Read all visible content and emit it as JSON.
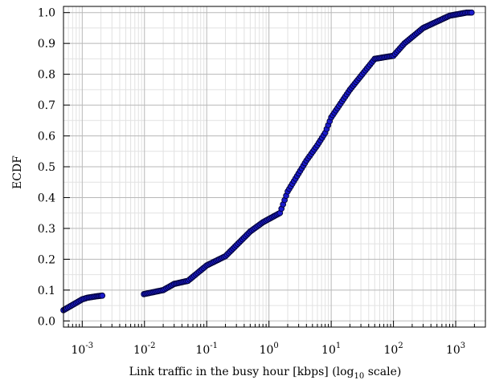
{
  "chart_data": {
    "type": "scatter",
    "xlabel_main": "Link traffic in the busy hour [kbps] (log",
    "xlabel_sub": "10",
    "xlabel_tail": " scale)",
    "ylabel": "ECDF",
    "x_scale": "log10",
    "xlim": [
      0.0005,
      3000
    ],
    "ylim": [
      -0.02,
      1.02
    ],
    "grid": true,
    "marker_color": "#1a1acc",
    "marker_edge": "#000033",
    "x_ticks": [
      {
        "base": "10",
        "exp": "-3",
        "value": 0.001
      },
      {
        "base": "10",
        "exp": "-2",
        "value": 0.01
      },
      {
        "base": "10",
        "exp": "-1",
        "value": 0.1
      },
      {
        "base": "10",
        "exp": "0",
        "value": 1
      },
      {
        "base": "10",
        "exp": "1",
        "value": 10
      },
      {
        "base": "10",
        "exp": "2",
        "value": 100
      },
      {
        "base": "10",
        "exp": "3",
        "value": 1000
      }
    ],
    "y_ticks": [
      "0.0",
      "0.1",
      "0.2",
      "0.3",
      "0.4",
      "0.5",
      "0.6",
      "0.7",
      "0.8",
      "0.9",
      "1.0"
    ],
    "anchors": [
      [
        0.0005,
        0.035
      ],
      [
        0.001,
        0.07
      ],
      [
        0.0012,
        0.075
      ],
      [
        0.0017,
        0.08
      ],
      [
        0.0021,
        0.082
      ],
      [
        0.0098,
        0.087
      ],
      [
        0.02,
        0.1
      ],
      [
        0.03,
        0.12
      ],
      [
        0.05,
        0.13
      ],
      [
        0.1,
        0.18
      ],
      [
        0.2,
        0.21
      ],
      [
        0.5,
        0.29
      ],
      [
        0.8,
        0.32
      ],
      [
        1.5,
        0.35
      ],
      [
        2.0,
        0.42
      ],
      [
        4.0,
        0.52
      ],
      [
        6.0,
        0.57
      ],
      [
        8.0,
        0.61
      ],
      [
        10.0,
        0.66
      ],
      [
        20.0,
        0.75
      ],
      [
        50.0,
        0.85
      ],
      [
        100.0,
        0.86
      ],
      [
        150.0,
        0.9
      ],
      [
        300.0,
        0.95
      ],
      [
        800.0,
        0.99
      ],
      [
        1500.0,
        1.0
      ],
      [
        1800.0,
        1.0
      ]
    ]
  }
}
